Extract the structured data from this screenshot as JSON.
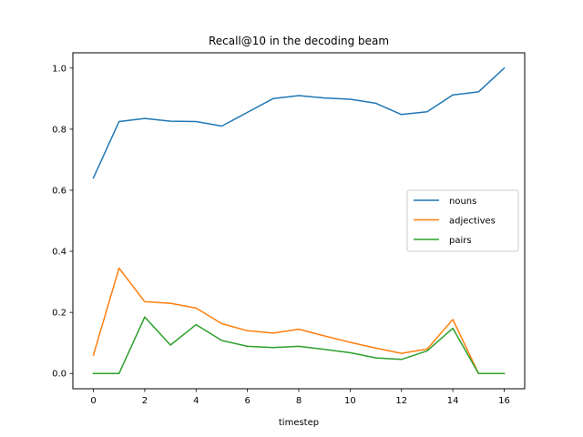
{
  "chart_data": {
    "type": "line",
    "title": "Recall@10 in the decoding beam",
    "xlabel": "timestep",
    "ylabel": "",
    "x": [
      0,
      1,
      2,
      3,
      4,
      5,
      6,
      7,
      8,
      9,
      10,
      11,
      12,
      13,
      14,
      15,
      16
    ],
    "xlim": [
      -0.8,
      16.8
    ],
    "ylim": [
      -0.05,
      1.05
    ],
    "xticks": [
      0,
      2,
      4,
      6,
      8,
      10,
      12,
      14,
      16
    ],
    "yticks": [
      "0.0",
      "0.2",
      "0.4",
      "0.6",
      "0.8",
      "1.0"
    ],
    "grid": false,
    "legend_position": "center-right",
    "series": [
      {
        "name": "nouns",
        "color": "#1f77b4",
        "values": [
          0.64,
          0.825,
          0.835,
          0.826,
          0.825,
          0.81,
          0.855,
          0.9,
          0.91,
          0.902,
          0.898,
          0.885,
          0.848,
          0.857,
          0.912,
          0.922,
          1.0
        ]
      },
      {
        "name": "adjectives",
        "color": "#ff7f0e",
        "values": [
          0.06,
          0.345,
          0.235,
          0.23,
          0.214,
          0.163,
          0.14,
          0.132,
          0.145,
          0.123,
          0.102,
          0.083,
          0.066,
          0.08,
          0.177,
          0.0,
          0.0
        ]
      },
      {
        "name": "pairs",
        "color": "#2ca02c",
        "values": [
          0.0,
          0.0,
          0.185,
          0.093,
          0.16,
          0.108,
          0.089,
          0.085,
          0.089,
          0.079,
          0.068,
          0.051,
          0.046,
          0.074,
          0.148,
          0.0,
          0.0
        ]
      }
    ]
  }
}
